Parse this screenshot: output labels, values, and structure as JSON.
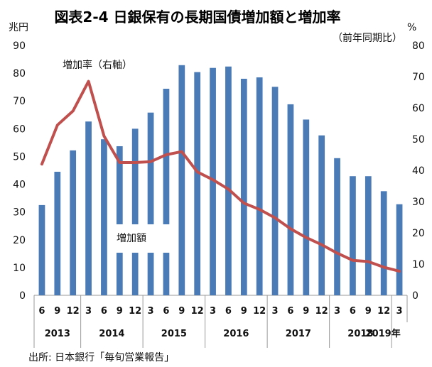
{
  "chart_data": {
    "type": "bar+line",
    "title": "図表2-4 日銀保有の長期国債増加額と増加率",
    "left_unit": "兆円",
    "right_unit": "%",
    "right_note": "（前年同期比）",
    "ylim_left": [
      0,
      90
    ],
    "yticks_left": [
      "0",
      "10",
      "20",
      "30",
      "40",
      "50",
      "60",
      "70",
      "80",
      "90"
    ],
    "ylim_right": [
      0,
      80
    ],
    "yticks_right": [
      "0",
      "10",
      "20",
      "30",
      "40",
      "50",
      "60",
      "70",
      "80"
    ],
    "categories": [
      "6",
      "9",
      "12",
      "3",
      "6",
      "9",
      "12",
      "3",
      "6",
      "9",
      "12",
      "3",
      "6",
      "9",
      "12",
      "3",
      "6",
      "9",
      "12",
      "3",
      "6",
      "9",
      "12",
      "3"
    ],
    "years": [
      {
        "label": "2013",
        "from": 0,
        "to": 2
      },
      {
        "label": "2014",
        "from": 3,
        "to": 6
      },
      {
        "label": "2015",
        "from": 7,
        "to": 10
      },
      {
        "label": "2016",
        "from": 11,
        "to": 14
      },
      {
        "label": "2017",
        "from": 15,
        "to": 18
      },
      {
        "label": "2018",
        "from": 19,
        "to": 22
      },
      {
        "label": "2019年",
        "from": 23,
        "to": 23
      }
    ],
    "series": [
      {
        "name": "増加額",
        "type": "bar",
        "axis": "left",
        "color": "#4a7bb7",
        "values": [
          32.5,
          44.5,
          52.2,
          62.6,
          56.2,
          53.7,
          60.0,
          65.8,
          74.4,
          82.9,
          80.4,
          81.9,
          82.4,
          78.0,
          78.5,
          75.1,
          68.8,
          63.3,
          57.6,
          49.4,
          42.9,
          42.9,
          37.5,
          32.8
        ]
      },
      {
        "name": "増加率（右軸）",
        "type": "line",
        "axis": "right",
        "color": "#c0504d",
        "values": [
          42.0,
          54.5,
          59.0,
          68.5,
          51.0,
          42.5,
          42.5,
          42.8,
          45.0,
          46.0,
          39.5,
          37.0,
          34.0,
          29.5,
          27.5,
          24.8,
          21.3,
          18.5,
          16.2,
          13.5,
          11.2,
          10.8,
          9.0,
          7.7
        ]
      }
    ],
    "annotations": [
      "増加額",
      "増加率（右軸）"
    ],
    "source": "出所: 日本銀行「毎旬営業報告」"
  }
}
